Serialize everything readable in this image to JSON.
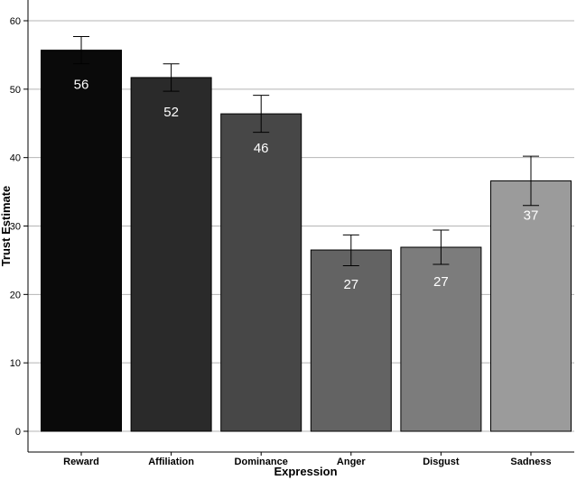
{
  "chart_data": {
    "type": "bar",
    "title": "",
    "xlabel": "Expression",
    "ylabel": "Trust Estimate",
    "categories": [
      "Reward",
      "Affiliation",
      "Dominance",
      "Anger",
      "Disgust",
      "Sadness"
    ],
    "values": [
      55.7,
      51.7,
      46.4,
      26.5,
      26.9,
      36.6
    ],
    "data_labels": [
      "56",
      "52",
      "46",
      "27",
      "27",
      "37"
    ],
    "error_low": [
      53.7,
      49.7,
      43.7,
      24.2,
      24.4,
      33.0
    ],
    "error_high": [
      57.7,
      53.7,
      49.1,
      28.7,
      29.4,
      40.2
    ],
    "bar_colors": [
      "#0a0a0a",
      "#2a2a2a",
      "#474747",
      "#636363",
      "#7c7c7c",
      "#9b9b9b"
    ],
    "ylim": [
      0,
      62
    ],
    "yticks": [
      0,
      10,
      20,
      30,
      40,
      50,
      60
    ],
    "grid": true,
    "grid_color": "#b5b5b5"
  }
}
